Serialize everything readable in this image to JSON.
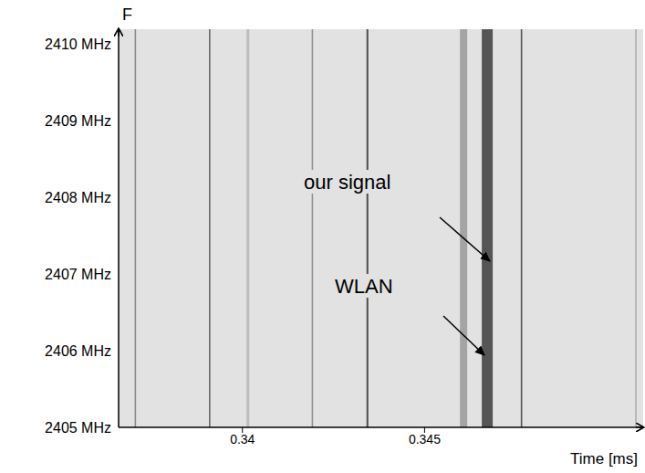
{
  "chart_data": {
    "type": "spectrogram",
    "x_label": "Time [ms]",
    "y_label": "F",
    "xlim": [
      0.3366,
      0.351
    ],
    "xticks": [
      0.34,
      0.345
    ],
    "ylim": [
      2405,
      2410.2
    ],
    "yticks": [
      {
        "value": 2405,
        "label": "2405 MHz"
      },
      {
        "value": 2406,
        "label": "2406 MHz"
      },
      {
        "value": 2407,
        "label": "2407 MHz"
      },
      {
        "value": 2408,
        "label": "2408 MHz"
      },
      {
        "value": 2409,
        "label": "2409 MHz"
      },
      {
        "value": 2410,
        "label": "2410 MHz"
      }
    ],
    "grid": false,
    "color": "#e2e2e2",
    "pulses": [
      {
        "t": 0.33704,
        "duration": 4e-05,
        "intensity": 0.5
      },
      {
        "t": 0.33908,
        "duration": 4e-05,
        "intensity": 0.7
      },
      {
        "t": 0.34011,
        "duration": 8e-05,
        "intensity": 0.2
      },
      {
        "t": 0.3419,
        "duration": 4e-05,
        "intensity": 0.45
      },
      {
        "t": 0.343405,
        "duration": 5e-05,
        "intensity": 0.85
      },
      {
        "t": 0.34597,
        "duration": 0.0002,
        "intensity": 0.35
      },
      {
        "t": 0.34657,
        "duration": 0.0003,
        "intensity": 0.8
      },
      {
        "t": 0.34764,
        "duration": 4e-05,
        "intensity": 0.8
      },
      {
        "t": 0.35078,
        "duration": 4e-05,
        "intensity": 0.3
      }
    ],
    "annotations": [
      "our signal",
      "WLAN"
    ]
  }
}
